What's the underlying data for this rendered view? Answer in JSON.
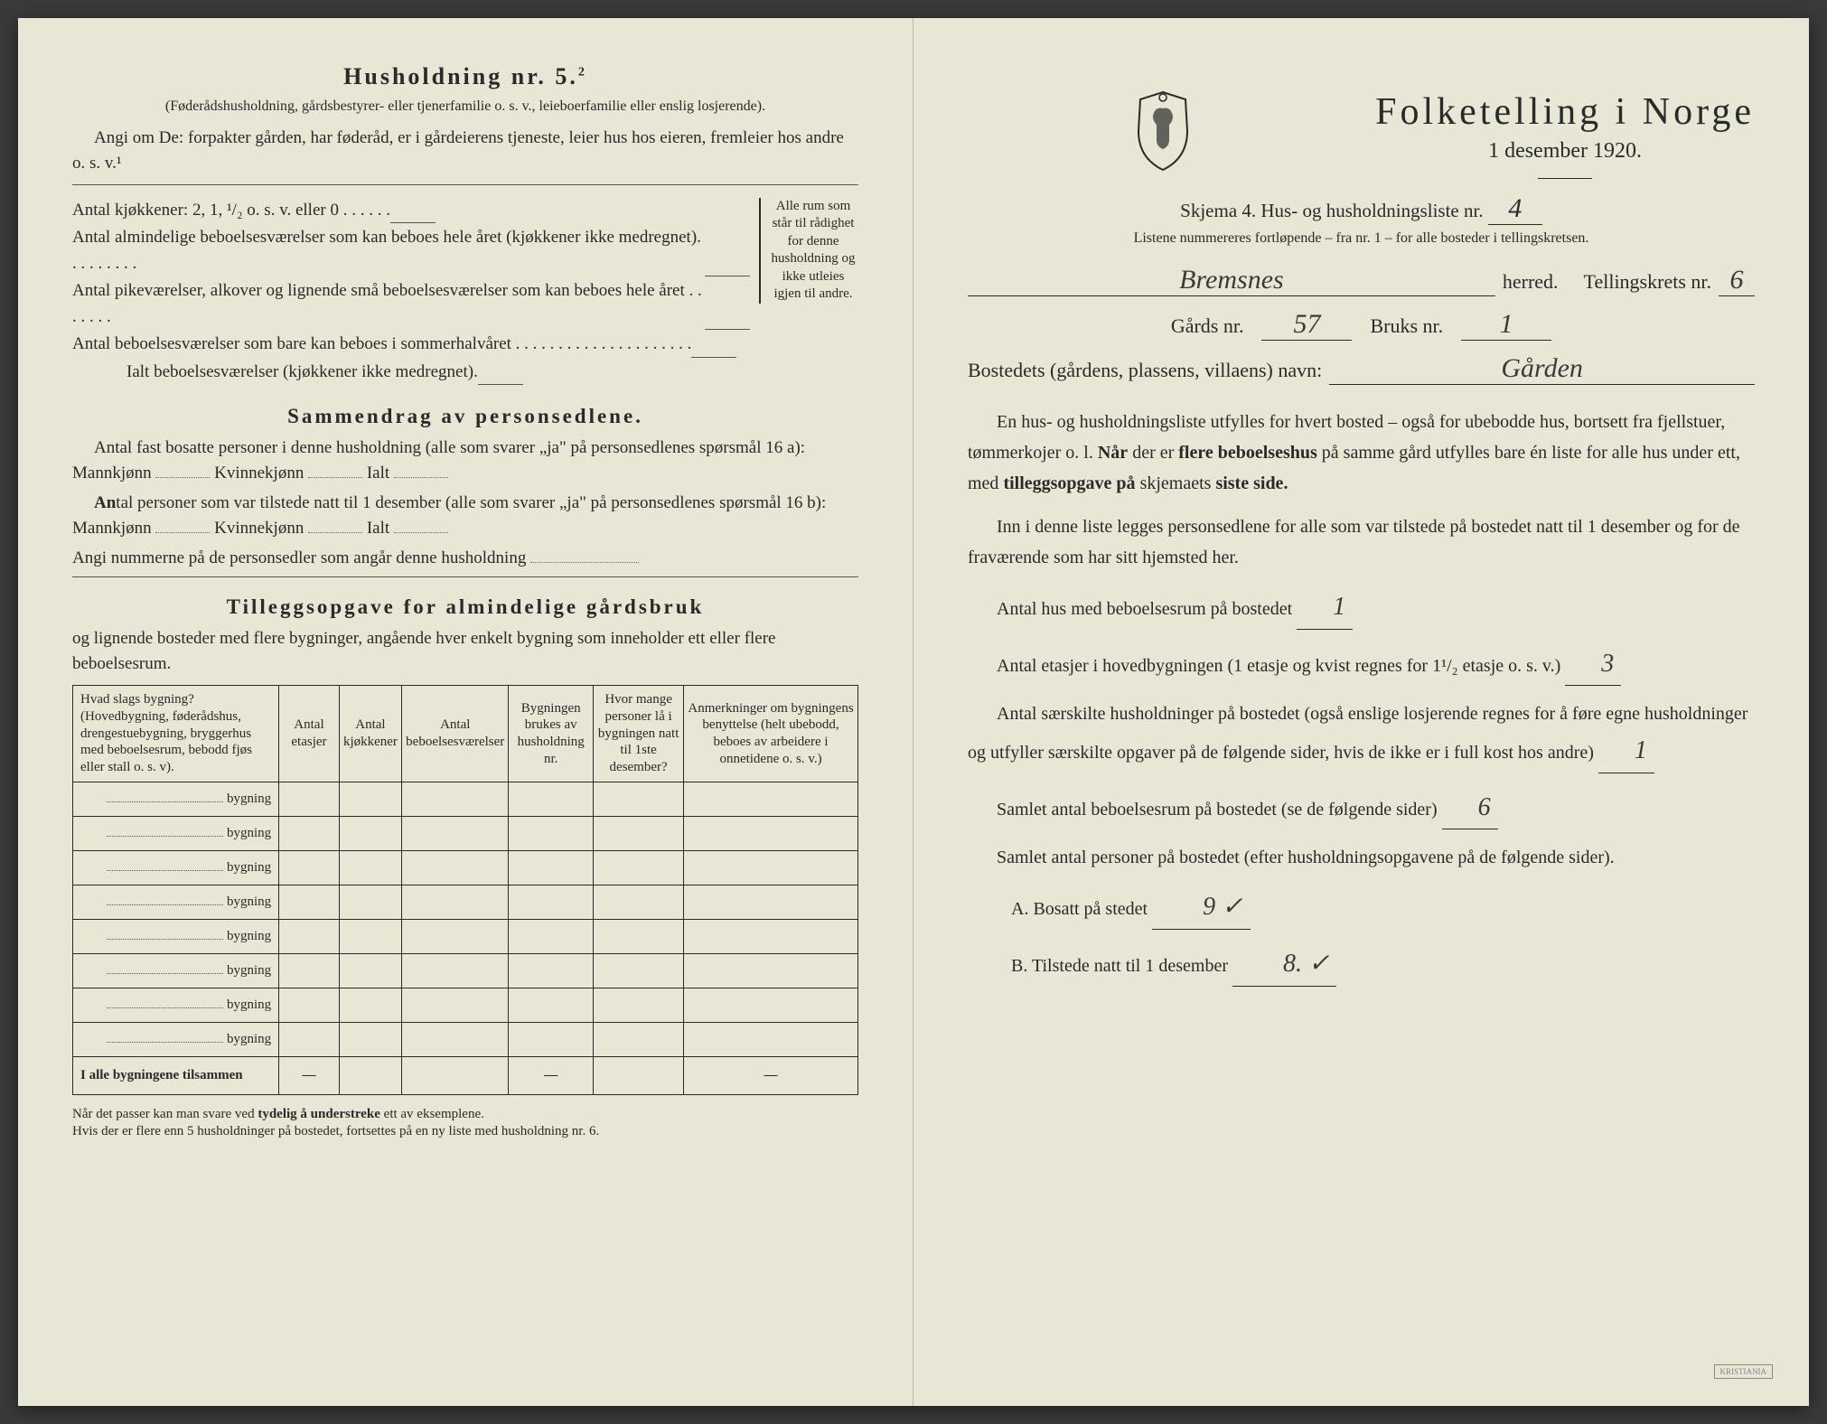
{
  "left": {
    "heading": "Husholdning nr. 5.",
    "heading_sup": "2",
    "subnote": "(Føderådshusholdning, gårdsbestyrer- eller tjenerfamilie o. s. v., leieboerfamilie eller enslig losjerende).",
    "para1": "Angi om De: forpakter gården, har føderåd, er i gårdeierens tjeneste, leier hus hos eieren, fremleier hos andre o. s. v.¹",
    "kitchens_label": "Antal kjøkkener: 2, 1, ¹/₂ o. s. v. eller 0 .  .  .  .  .  .",
    "rooms": [
      "Antal almindelige beboelsesværelser som kan beboes hele året (kjøkkener ikke medregnet). .  .  .  .  .  .  .  .",
      "Antal pikeværelser, alkover og lignende små beboelsesværelser som kan beboes hele året .  .  .  .  .  .  .",
      "Antal beboelsesværelser som bare kan beboes i sommerhalvåret .  .  .  .  .  .  .  .  .  .  .  .  .  .  .  .  .  .  .  .  .",
      "Ialt beboelsesværelser (kjøkkener ikke medregnet)."
    ],
    "side_note": "Alle rum som står til rådighet for denne husholdning og ikke utleies igjen til andre.",
    "summary_heading": "Sammendrag av personsedlene.",
    "summary1_pre": "Antal fast bosatte personer i denne husholdning (alle som svarer „ja\" på personsedlenes spørsmål 16 a): Mannkjønn",
    "summary_kv": "Kvinnekjønn",
    "summary_ialt": "Ialt",
    "summary2_pre": "Antal personer som var tilstede natt til 1 desember (alle som svarer „ja\" på personsedlenes spørsmål 16 b): Mannkjønn",
    "angi": "Angi nummerne på de personsedler som angår denne husholdning",
    "tillegg_heading": "Tilleggsopgave for almindelige gårdsbruk",
    "tillegg_sub": "og lignende bosteder med flere bygninger, angående hver enkelt bygning som inneholder ett eller flere beboelsesrum.",
    "table": {
      "headers": [
        "Hvad slags bygning?\n(Hovedbygning, føderådshus, drengestuebygning, bryggerhus med beboelsesrum, bebodd fjøs eller stall o. s. v).",
        "Antal etasjer",
        "Antal kjøkkener",
        "Antal beboelsesværelser",
        "Bygningen brukes av husholdning nr.",
        "Hvor mange personer lå i bygningen natt til 1ste desember?",
        "Anmerkninger om bygningens benyttelse (helt ubebodd, beboes av arbeidere i onnetidene o. s. v.)"
      ],
      "row_label": "bygning",
      "row_count": 8,
      "total_label": "I alle bygningene tilsammen"
    },
    "footnote": "Når det passer kan man svare ved tydelig å understreke ett av eksemplene.\nHvis der er flere enn 5 husholdninger på bostedet, fortsettes på en ny liste med husholdning nr. 6."
  },
  "right": {
    "title": "Folketelling i Norge",
    "date": "1 desember 1920.",
    "skjema": "Skjema 4.  Hus- og husholdningsliste nr.",
    "skjema_val": "4",
    "liste_note": "Listene nummereres fortløpende – fra nr. 1 – for alle bosteder i tellingskretsen.",
    "herred_val": "Bremsnes",
    "herred_label": "herred.",
    "krets_label": "Tellingskrets nr.",
    "krets_val": "6",
    "gards_label": "Gårds nr.",
    "gards_val": "57",
    "bruks_label": "Bruks nr.",
    "bruks_val": "1",
    "bosted_label": "Bostedets (gårdens, plassens, villaens) navn:",
    "bosted_val": "Gården",
    "p1": "En hus- og husholdningsliste utfylles for hvert bosted – også for ubebodde hus, bortsett fra fjellstuer, tømmerkojer o. l. Når der er flere beboelseshus på samme gård utfylles bare én liste for alle hus under ett, med tilleggsopgave på skjemaets siste side.",
    "p2": "Inn i denne liste legges personsedlene for alle som var tilstede på bostedet natt til 1 desember og for de fraværende som har sitt hjemsted her.",
    "q_hus": "Antal hus med beboelsesrum på bostedet",
    "q_hus_val": "1",
    "q_etasjer_pre": "Antal etasjer i hovedbygningen (1 etasje og kvist regnes for 1¹/₂ etasje o. s. v.)",
    "q_etasjer_val": "3",
    "q_hushold": "Antal særskilte husholdninger på bostedet (også enslige losjerende regnes for å føre egne husholdninger og utfyller særskilte opgaver på de følgende sider, hvis de ikke er i full kost hos andre)",
    "q_hushold_val": "1",
    "q_rum": "Samlet antal beboelsesrum på bostedet (se de følgende sider)",
    "q_rum_val": "6",
    "q_pers": "Samlet antal personer på bostedet (efter husholdningsopgavene på de følgende sider).",
    "q_a": "A.  Bosatt på stedet",
    "q_a_val": "9 ✓",
    "q_b": "B.  Tilstede natt til 1 desember",
    "q_b_val": "8. ✓",
    "stamp": "KRISTIANIA"
  },
  "colors": {
    "paper": "#e8e6d4",
    "ink": "#2a2a2a",
    "handwriting": "#3a3a3a"
  }
}
